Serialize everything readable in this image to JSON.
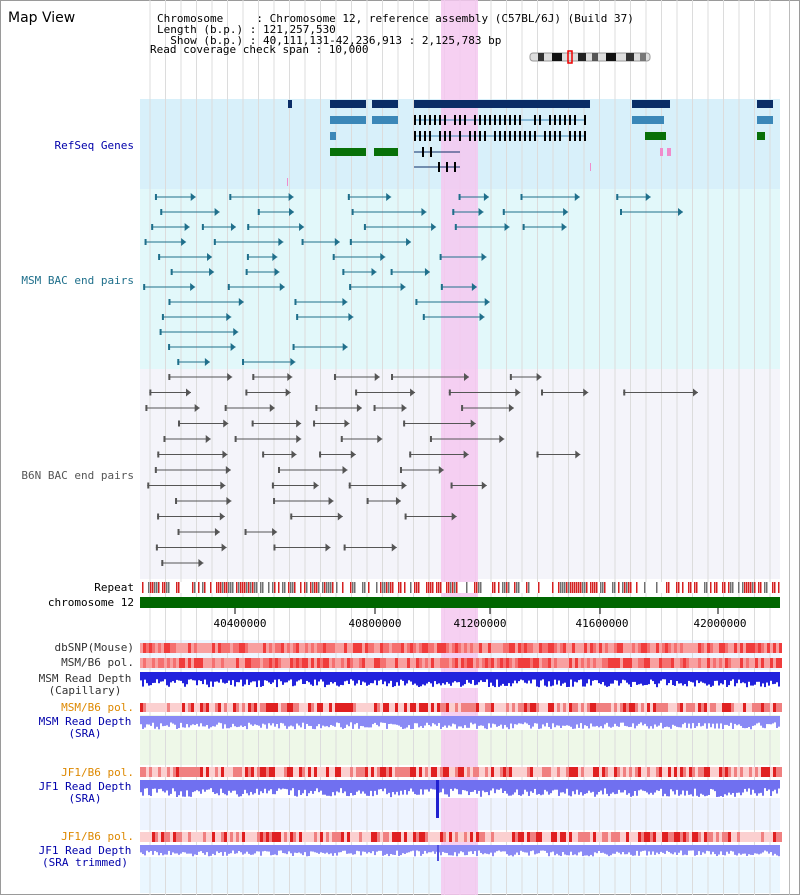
{
  "header": {
    "title": "Map View",
    "info_lines": [
      "Chromosome     : Chromosome 12, reference assembly (C57BL/6J) (Build 37)",
      "Length (b.p.) : 121,257,530",
      "  Show (b.p.) : 40,111,131-42,236,913 : 2,125,783 bp",
      "Read coverage check span : 10,000"
    ]
  },
  "tracks": {
    "refseq": "RefSeq Genes",
    "msm_bac": "MSM BAC end pairs",
    "b6n_bac": "B6N BAC end pairs",
    "repeat": "Repeat",
    "chromosome": "chromosome 12",
    "dbsnp": "dbSNP(Mouse)",
    "msm_b6_pol_1": "MSM/B6 pol.",
    "msm_depth_cap_1": "MSM Read Depth",
    "msm_depth_cap_2": "(Capillary)",
    "msm_b6_pol_2": "MSM/B6 pol.",
    "msm_depth_sra_1": "MSM Read Depth",
    "msm_depth_sra_2": "(SRA)",
    "jf1_b6_pol_1": "JF1/B6 pol.",
    "jf1_depth_sra_1": "JF1 Read Depth",
    "jf1_depth_sra_2": "(SRA)",
    "jf1_b6_pol_2": "JF1/B6 pol.",
    "jf1_depth_trim_1": "JF1 Read Depth",
    "jf1_depth_trim_2": "(SRA trimmed)"
  },
  "axis": {
    "ticks": [
      "40400000",
      "40800000",
      "41200000",
      "41600000",
      "42000000"
    ]
  },
  "colors": {
    "gene_dark": "#0b2d66",
    "gene_mid": "#3b87b8",
    "gene_green": "#087008",
    "msm_bac": "#1f6f8b",
    "b6n_bac": "#555555",
    "highlight": "#f5c8f0",
    "label_blue": "#0000aa",
    "label_orange": "#dd8800",
    "label_teal": "#1f6f8b"
  }
}
